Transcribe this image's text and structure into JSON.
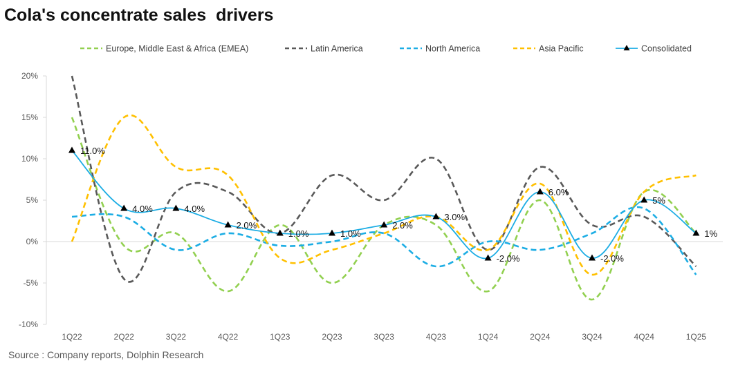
{
  "title": "Cola's concentrate sales  drivers",
  "source": "Source : Company reports, Dolphin Research",
  "chart_data": {
    "type": "line",
    "categories": [
      "1Q22",
      "2Q22",
      "3Q22",
      "4Q22",
      "1Q23",
      "2Q23",
      "3Q23",
      "4Q23",
      "1Q24",
      "2Q24",
      "3Q24",
      "4Q24",
      "1Q25"
    ],
    "ylim": [
      -10,
      20
    ],
    "yticks": [
      -10,
      -5,
      0,
      5,
      10,
      15,
      20
    ],
    "yticks_labels": [
      "-10%",
      "-5%",
      "0%",
      "5%",
      "10%",
      "15%",
      "20%"
    ],
    "grid": false,
    "legend_position": "top",
    "series": [
      {
        "name": "Europe, Middle East & Africa (EMEA)",
        "color": "#92D050",
        "dashed": true,
        "marker": false,
        "values": [
          15,
          -0.5,
          1,
          -6,
          2,
          -5,
          2,
          2,
          -6,
          5,
          -7,
          6,
          1
        ]
      },
      {
        "name": "Latin America",
        "color": "#595959",
        "dashed": true,
        "marker": false,
        "values": [
          20,
          -4.5,
          6,
          6,
          1,
          8,
          5,
          10,
          -1,
          9,
          2,
          3,
          -3
        ]
      },
      {
        "name": "North America",
        "color": "#1CADE4",
        "dashed": true,
        "marker": false,
        "values": [
          3,
          3,
          -1,
          1,
          -0.5,
          0,
          1,
          -3,
          0,
          -1,
          1,
          4,
          -4
        ]
      },
      {
        "name": "Asia Pacific",
        "color": "#FFC000",
        "dashed": true,
        "marker": false,
        "values": [
          0,
          15,
          9,
          8,
          -2,
          -1,
          1,
          3,
          -1,
          7,
          -4,
          6,
          8
        ]
      },
      {
        "name": "Consolidated",
        "color": "#1CADE4",
        "dashed": false,
        "marker": true,
        "values": [
          11,
          4,
          4,
          2,
          1,
          1,
          2,
          3,
          -2,
          6,
          -2,
          5,
          1
        ],
        "data_labels": [
          "11.0%",
          "4.0%",
          "4.0%",
          "2.0%",
          "1.0%",
          "1.0%",
          "2.0%",
          "3.0%",
          "-2.0%",
          "6.0%",
          "-2.0%",
          "5%",
          "1%"
        ]
      }
    ]
  }
}
